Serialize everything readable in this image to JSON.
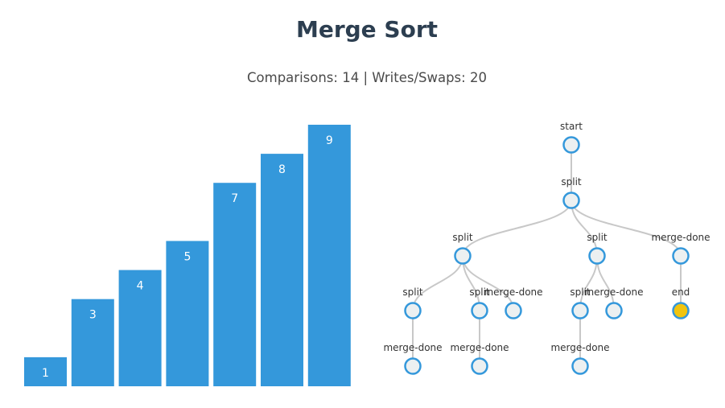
{
  "title": "Merge Sort",
  "stats": {
    "comparisons_label": "Comparisons:",
    "comparisons": "14",
    "separator": "|",
    "writes_label": "Writes/Swaps:",
    "writes": "20"
  },
  "colors": {
    "bar": "#3498db",
    "bar_text": "#ffffff",
    "node_fill": "#ecf0f1",
    "node_stroke": "#3498db",
    "node_active": "#f1c40f",
    "edge": "#c8c8c8",
    "title": "#2c3e50"
  },
  "chart_data": {
    "type": "bar",
    "values": [
      1,
      3,
      4,
      5,
      7,
      8,
      9
    ],
    "ylim": [
      0,
      9
    ]
  },
  "tree": {
    "nodes": [
      {
        "id": "n0",
        "label": "start",
        "parent": null,
        "depth": 0,
        "slot": 0,
        "active": false
      },
      {
        "id": "n1",
        "label": "split",
        "parent": "n0",
        "depth": 1,
        "slot": 0,
        "active": false
      },
      {
        "id": "n2",
        "label": "split",
        "parent": "n1",
        "depth": 2,
        "slot": 0,
        "active": false
      },
      {
        "id": "n3",
        "label": "split",
        "parent": "n1",
        "depth": 2,
        "slot": 1,
        "active": false
      },
      {
        "id": "n4",
        "label": "merge-done",
        "parent": "n1",
        "depth": 2,
        "slot": 2,
        "active": false
      },
      {
        "id": "n5",
        "label": "split",
        "parent": "n2",
        "depth": 3,
        "slot": 0,
        "active": false
      },
      {
        "id": "n6",
        "label": "split",
        "parent": "n2",
        "depth": 3,
        "slot": 1,
        "active": false
      },
      {
        "id": "n7",
        "label": "merge-done",
        "parent": "n2",
        "depth": 3,
        "slot": 2,
        "active": false
      },
      {
        "id": "n8",
        "label": "split",
        "parent": "n3",
        "depth": 3,
        "slot": 3,
        "active": false
      },
      {
        "id": "n9",
        "label": "merge-done",
        "parent": "n3",
        "depth": 3,
        "slot": 4,
        "active": false
      },
      {
        "id": "n10",
        "label": "end",
        "parent": "n4",
        "depth": 3,
        "slot": 5,
        "active": true
      },
      {
        "id": "n11",
        "label": "merge-done",
        "parent": "n5",
        "depth": 4,
        "slot": 0,
        "active": false
      },
      {
        "id": "n12",
        "label": "merge-done",
        "parent": "n6",
        "depth": 4,
        "slot": 1,
        "active": false
      },
      {
        "id": "n13",
        "label": "merge-done",
        "parent": "n8",
        "depth": 4,
        "slot": 2,
        "active": false
      }
    ]
  }
}
